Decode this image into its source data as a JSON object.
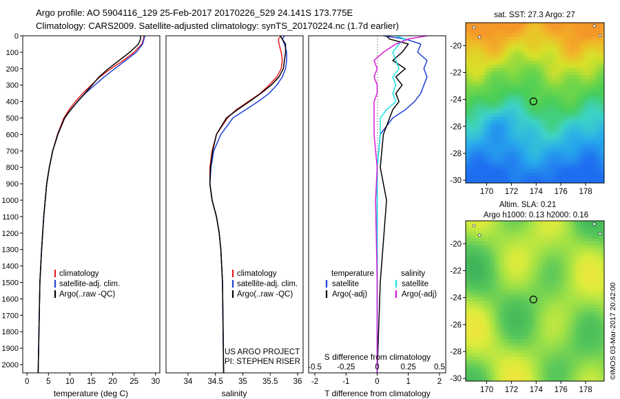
{
  "header": {
    "line1": "Argo profile: AO 5904116_129 25-Feb-2017 20170226_529 24.141S 173.775E",
    "line2": "Climatology: CARS2009. Satellite-adjusted climatology: synTS_20170224.nc (1.7d earlier)"
  },
  "colors": {
    "climatology": "#e41a1c",
    "satellite": "#1f3fd6",
    "argo": "#000000",
    "sat_salinity": "#17e3e3",
    "argo_salinity": "#d81ad8"
  },
  "chart_data": [
    {
      "type": "line",
      "xlabel": "temperature (deg C)",
      "xlim": [
        -1,
        31
      ],
      "xticks": [
        "0",
        "5",
        "10",
        "15",
        "20",
        "25",
        "30"
      ],
      "ylim": [
        0,
        2050
      ],
      "yticks": [
        "0",
        "100",
        "200",
        "300",
        "400",
        "500",
        "600",
        "700",
        "800",
        "900",
        "1000",
        "1100",
        "1200",
        "1300",
        "1400",
        "1500",
        "1600",
        "1700",
        "1800",
        "1900",
        "2000"
      ],
      "legend": [
        "climatology",
        "satellite-adj. clim.",
        "Argo(..raw -QC)"
      ],
      "series": [
        {
          "name": "climatology",
          "color": "red",
          "x": [
            27.3,
            27.2,
            26.8,
            25.0,
            22.5,
            19.6,
            17.0,
            15.0,
            13.0,
            11.3,
            9.8,
            8.6,
            7.1,
            6.0,
            5.2,
            4.6,
            3.9,
            3.4,
            3.0,
            2.6
          ],
          "y": [
            0,
            20,
            50,
            100,
            150,
            200,
            250,
            300,
            350,
            400,
            450,
            500,
            600,
            700,
            800,
            900,
            1100,
            1300,
            1500,
            2050
          ]
        },
        {
          "name": "satellite-adj. clim.",
          "color": "blue",
          "x": [
            27.5,
            27.3,
            27.0,
            25.5,
            23.0,
            20.5,
            18.0,
            15.8,
            13.6,
            11.8,
            10.2,
            8.8,
            7.2,
            6.0,
            5.2,
            4.6,
            3.9,
            3.4,
            3.0,
            2.6
          ],
          "y": [
            0,
            20,
            50,
            100,
            150,
            200,
            250,
            300,
            350,
            400,
            450,
            500,
            600,
            700,
            800,
            900,
            1100,
            1300,
            1500,
            2050
          ]
        },
        {
          "name": "Argo(..raw -QC)",
          "color": "black",
          "x": [
            26.5,
            26.5,
            26.0,
            24.0,
            21.5,
            19.0,
            16.8,
            15.2,
            13.5,
            11.8,
            10.2,
            8.8,
            7.2,
            6.0,
            5.2,
            4.6,
            3.9,
            3.4,
            3.0,
            2.6
          ],
          "y": [
            0,
            20,
            50,
            100,
            150,
            200,
            250,
            300,
            350,
            400,
            450,
            500,
            600,
            700,
            800,
            900,
            1100,
            1300,
            1500,
            2050
          ]
        }
      ]
    },
    {
      "type": "line",
      "xlabel": "salinity",
      "xlim": [
        33.6,
        36.1
      ],
      "xticks": [
        "34",
        "34.5",
        "35",
        "35.5",
        "36"
      ],
      "ylim": [
        0,
        2050
      ],
      "legend": [
        "climatology",
        "satellite-adj. clim.",
        "Argo(..raw -QC)"
      ],
      "annotation": [
        "US ARGO PROJECT",
        "PI: STEPHEN RISER"
      ],
      "series": [
        {
          "name": "climatology",
          "color": "red",
          "x": [
            35.7,
            35.65,
            35.66,
            35.7,
            35.72,
            35.7,
            35.62,
            35.48,
            35.32,
            35.1,
            34.88,
            34.72,
            34.52,
            34.44,
            34.4,
            34.4,
            34.44,
            34.52,
            34.57,
            34.6,
            34.63,
            34.65
          ],
          "y": [
            0,
            20,
            50,
            100,
            150,
            200,
            250,
            300,
            350,
            400,
            450,
            500,
            600,
            700,
            800,
            900,
            1000,
            1100,
            1200,
            1300,
            1500,
            2050
          ]
        },
        {
          "name": "satellite-adj. clim.",
          "color": "blue",
          "x": [
            35.76,
            35.72,
            35.76,
            35.8,
            35.8,
            35.78,
            35.72,
            35.62,
            35.48,
            35.28,
            35.05,
            34.82,
            34.6,
            34.47,
            34.42,
            34.4,
            34.44,
            34.52,
            34.57,
            34.6,
            34.63,
            34.65
          ],
          "y": [
            0,
            20,
            50,
            100,
            150,
            200,
            250,
            300,
            350,
            400,
            450,
            500,
            600,
            700,
            800,
            900,
            1000,
            1100,
            1200,
            1300,
            1500,
            2050
          ]
        },
        {
          "name": "Argo(..raw -QC)",
          "color": "black",
          "x": [
            35.68,
            35.72,
            35.78,
            35.78,
            35.76,
            35.74,
            35.66,
            35.52,
            35.33,
            35.12,
            34.9,
            34.7,
            34.52,
            34.45,
            34.41,
            34.4,
            34.44,
            34.52,
            34.57,
            34.6,
            34.63,
            34.65
          ],
          "y": [
            0,
            20,
            50,
            100,
            150,
            200,
            250,
            300,
            350,
            400,
            450,
            500,
            600,
            700,
            800,
            900,
            1000,
            1100,
            1200,
            1300,
            1500,
            2050
          ]
        }
      ]
    },
    {
      "type": "line",
      "xlabel": "T difference from climatology",
      "xlabel_top": "S difference from climatology",
      "xlim": [
        -2.2,
        2.2
      ],
      "xticks": [
        "-2",
        "-1",
        "0",
        "1",
        "2"
      ],
      "xticks_top": [
        "-0.5",
        "-0.25",
        "0",
        "0.25",
        "0.5"
      ],
      "ylim": [
        0,
        2050
      ],
      "legend_titles": [
        "temperature",
        "salinity"
      ],
      "legend": [
        "satellite",
        "Argo(-adj)",
        "satellite",
        "Argo(-adj)"
      ],
      "series": [
        {
          "name": "satellite",
          "group": "temperature",
          "color": "blue",
          "x": [
            0.2,
            0.9,
            1.4,
            1.3,
            1.6,
            1.5,
            1.6,
            1.5,
            1.4,
            1.2,
            0.9,
            0.5,
            0.1,
            0.0,
            0.0,
            0.0,
            0.0
          ],
          "y": [
            0,
            20,
            50,
            100,
            150,
            200,
            250,
            300,
            350,
            400,
            450,
            500,
            600,
            800,
            1000,
            1500,
            2050
          ]
        },
        {
          "name": "Argo(-adj)",
          "group": "temperature",
          "color": "black",
          "x": [
            0.3,
            0.4,
            1.0,
            0.8,
            0.5,
            0.9,
            0.6,
            0.8,
            0.6,
            0.7,
            0.5,
            0.4,
            0.2,
            0.1,
            0.3,
            0.1,
            0.0
          ],
          "y": [
            0,
            20,
            50,
            100,
            150,
            200,
            250,
            300,
            350,
            400,
            450,
            500,
            600,
            800,
            1000,
            1500,
            2050
          ]
        },
        {
          "name": "satellite",
          "group": "salinity",
          "color": "cyan",
          "x": [
            0.6,
            0.9,
            0.7,
            0.5,
            0.6,
            0.7,
            0.5,
            0.6,
            0.5,
            0.6,
            0.3,
            0.1,
            0.1,
            0.0,
            0.0,
            0.0,
            0.0
          ],
          "y": [
            0,
            20,
            50,
            100,
            150,
            200,
            250,
            300,
            350,
            400,
            450,
            500,
            600,
            800,
            1000,
            1500,
            2050
          ]
        },
        {
          "name": "Argo(-adj)",
          "group": "salinity",
          "color": "magenta",
          "x": [
            1.6,
            1.0,
            0.6,
            0.2,
            -0.1,
            0.0,
            -0.1,
            0.0,
            0.0,
            -0.1,
            -0.1,
            -0.1,
            -0.1,
            0.0,
            -0.05,
            0.0,
            0.0
          ],
          "y": [
            0,
            20,
            50,
            100,
            150,
            200,
            250,
            300,
            350,
            400,
            450,
            500,
            600,
            800,
            1000,
            1500,
            2050
          ]
        }
      ]
    },
    {
      "type": "heatmap",
      "title": "sat. SST: 27.3   Argo: 27",
      "xticks": [
        "170",
        "172",
        "174",
        "176",
        "178"
      ],
      "yticks": [
        "-20",
        "-22",
        "-24",
        "-26",
        "-28",
        "-30"
      ],
      "xlim": [
        168.3,
        179.5
      ],
      "ylim": [
        -30.2,
        -18.3
      ],
      "profile_location": [
        173.775,
        -24.141
      ]
    },
    {
      "type": "heatmap",
      "title": [
        "Altim. SLA: 0.21",
        "Argo h1000: 0.13 h2000: 0.16"
      ],
      "xticks": [
        "170",
        "172",
        "174",
        "176",
        "178"
      ],
      "yticks": [
        "-20",
        "-22",
        "-24",
        "-26",
        "-28",
        "-30"
      ],
      "xlim": [
        168.3,
        179.5
      ],
      "ylim": [
        -30.2,
        -18.3
      ],
      "profile_location": [
        173.775,
        -24.141
      ],
      "credit": "©IMOS 03-Mar-2017 20:42:00"
    }
  ]
}
